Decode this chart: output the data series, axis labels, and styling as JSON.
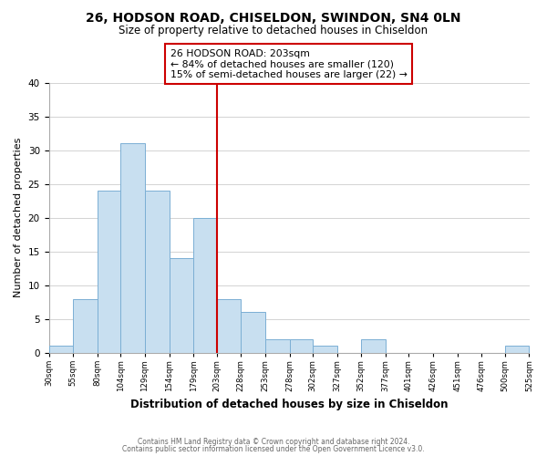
{
  "title": "26, HODSON ROAD, CHISELDON, SWINDON, SN4 0LN",
  "subtitle": "Size of property relative to detached houses in Chiseldon",
  "xlabel": "Distribution of detached houses by size in Chiseldon",
  "ylabel": "Number of detached properties",
  "bin_edges": [
    30,
    55,
    80,
    104,
    129,
    154,
    179,
    203,
    228,
    253,
    278,
    302,
    327,
    352,
    377,
    401,
    426,
    451,
    476,
    500,
    525
  ],
  "bin_counts": [
    1,
    8,
    24,
    31,
    24,
    14,
    20,
    8,
    6,
    2,
    2,
    1,
    0,
    2,
    0,
    0,
    0,
    0,
    0,
    1
  ],
  "bar_color": "#c8dff0",
  "bar_edge_color": "#7bafd4",
  "vline_x": 203,
  "vline_color": "#cc0000",
  "annotation_title": "26 HODSON ROAD: 203sqm",
  "annotation_line1": "← 84% of detached houses are smaller (120)",
  "annotation_line2": "15% of semi-detached houses are larger (22) →",
  "annotation_box_color": "#ffffff",
  "annotation_box_edge_color": "#cc0000",
  "ylim": [
    0,
    40
  ],
  "yticks": [
    0,
    5,
    10,
    15,
    20,
    25,
    30,
    35,
    40
  ],
  "tick_labels": [
    "30sqm",
    "55sqm",
    "80sqm",
    "104sqm",
    "129sqm",
    "154sqm",
    "179sqm",
    "203sqm",
    "228sqm",
    "253sqm",
    "278sqm",
    "302sqm",
    "327sqm",
    "352sqm",
    "377sqm",
    "401sqm",
    "426sqm",
    "451sqm",
    "476sqm",
    "500sqm",
    "525sqm"
  ],
  "grid_color": "#cccccc",
  "bg_color": "#ffffff",
  "footer1": "Contains HM Land Registry data © Crown copyright and database right 2024.",
  "footer2": "Contains public sector information licensed under the Open Government Licence v3.0."
}
